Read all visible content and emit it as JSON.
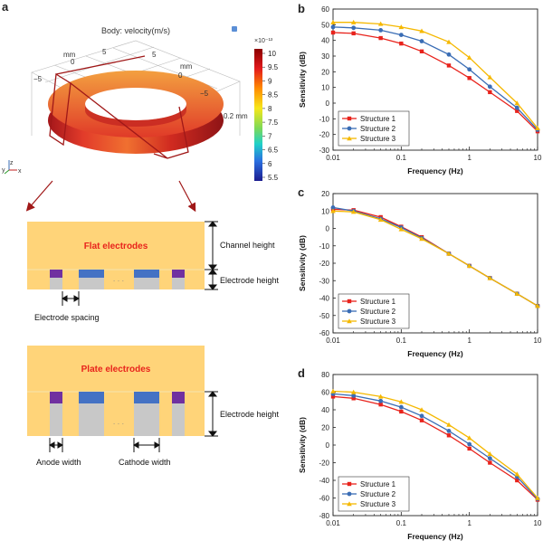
{
  "panels": {
    "a": "a",
    "b": "b",
    "c": "c",
    "d": "d"
  },
  "panel_a": {
    "title": "Body: velocity(m/s)",
    "colorbar": {
      "exponent": "×10⁻¹³",
      "ticks": [
        "10",
        "9.5",
        "9",
        "8.5",
        "8",
        "7.5",
        "7",
        "6.5",
        "6",
        "5.5"
      ]
    },
    "axis_labels": {
      "mm_left": "mm",
      "mm_right": "mm",
      "mm_bottom": "0.2 mm",
      "n5_left": "−5",
      "zero_left": "0",
      "five_top_left": "5",
      "five_top_right": "5",
      "zero_right": "0",
      "n5_right": "−5"
    },
    "triad": {
      "z": "z",
      "y": "y",
      "x": "x"
    },
    "flat": {
      "title": "Flat electrodes",
      "channel_height": "Channel height",
      "electrode_height": "Electrode height",
      "spacing": "Electrode spacing",
      "dots": "· · ·"
    },
    "plate": {
      "title": "Plate electrodes",
      "electrode_height": "Electrode height",
      "anode": "Anode width",
      "cathode": "Cathode width",
      "dots": "· · ·"
    },
    "colors": {
      "fluid": "#ffd479",
      "anode": "#7030a0",
      "cathode": "#4472c4",
      "gray": "#c8c8c8",
      "label_red": "#e8231c"
    }
  },
  "chart_data": [
    {
      "type": "line",
      "id": "b",
      "x": [
        0.01,
        0.02,
        0.05,
        0.1,
        0.2,
        0.5,
        1,
        2,
        5,
        10
      ],
      "xscale": "log",
      "xlim": [
        0.01,
        10
      ],
      "xticks": [
        "0.01",
        "0.1",
        "1",
        "10"
      ],
      "ylim": [
        -30,
        60
      ],
      "yticks": [
        -30,
        -20,
        -10,
        0,
        10,
        20,
        30,
        40,
        50,
        60
      ],
      "xlabel": "Frequency (Hz)",
      "ylabel": "Sensitivity (dB)",
      "legend": "bottom-left",
      "series": [
        {
          "name": "Structure 1",
          "color": "#e8231c",
          "marker": "square",
          "values": [
            45,
            44.5,
            41.5,
            38,
            33,
            24,
            16,
            7,
            -5,
            -18
          ]
        },
        {
          "name": "Structure 2",
          "color": "#3a6db5",
          "marker": "circle",
          "values": [
            48.5,
            48,
            46.5,
            43.5,
            39.5,
            31,
            21.5,
            10.5,
            -3,
            -17
          ]
        },
        {
          "name": "Structure 3",
          "color": "#f5b800",
          "marker": "triangle",
          "values": [
            51.5,
            51.5,
            50.5,
            48.5,
            46,
            39,
            29,
            16.5,
            0,
            -16
          ]
        }
      ]
    },
    {
      "type": "line",
      "id": "c",
      "x": [
        0.01,
        0.02,
        0.05,
        0.1,
        0.2,
        0.5,
        1,
        2,
        5,
        10
      ],
      "xscale": "log",
      "xlim": [
        0.01,
        10
      ],
      "xticks": [
        "0.01",
        "0.1",
        "1",
        "10"
      ],
      "ylim": [
        -60,
        20
      ],
      "yticks": [
        -60,
        -50,
        -40,
        -30,
        -20,
        -10,
        0,
        10,
        20
      ],
      "xlabel": "Frequency (Hz)",
      "ylabel": "Sensitivity (dB)",
      "legend": "bottom-left",
      "series": [
        {
          "name": "Structure 1",
          "color": "#e8231c",
          "marker": "square",
          "values": [
            11,
            10.5,
            6.5,
            1,
            -5,
            -14.5,
            -21.5,
            -28.5,
            -37.5,
            -44.5
          ]
        },
        {
          "name": "Structure 2",
          "color": "#3a6db5",
          "marker": "circle",
          "values": [
            12,
            10,
            5.5,
            0.5,
            -5.5,
            -14.5,
            -21.5,
            -28.5,
            -37.5,
            -44.5
          ]
        },
        {
          "name": "Structure 3",
          "color": "#f5b800",
          "marker": "triangle",
          "values": [
            10,
            9.5,
            5,
            -0.5,
            -6,
            -14.5,
            -21.5,
            -28.5,
            -37.5,
            -44.5
          ]
        }
      ]
    },
    {
      "type": "line",
      "id": "d",
      "x": [
        0.01,
        0.02,
        0.05,
        0.1,
        0.2,
        0.5,
        1,
        2,
        5,
        10
      ],
      "xscale": "log",
      "xlim": [
        0.01,
        10
      ],
      "xticks": [
        "0.01",
        "0.1",
        "1",
        "10"
      ],
      "ylim": [
        -80,
        80
      ],
      "yticks": [
        -80,
        -60,
        -40,
        -20,
        0,
        20,
        40,
        60,
        80
      ],
      "xlabel": "Frequency (Hz)",
      "ylabel": "Sensitivity (dB)",
      "legend": "bottom-left",
      "series": [
        {
          "name": "Structure 1",
          "color": "#e8231c",
          "marker": "square",
          "values": [
            55,
            53,
            46,
            38,
            28,
            11,
            -4,
            -20,
            -40,
            -62
          ]
        },
        {
          "name": "Structure 2",
          "color": "#3a6db5",
          "marker": "circle",
          "values": [
            58,
            56,
            50,
            43,
            33,
            16,
            1,
            -15,
            -36,
            -61
          ]
        },
        {
          "name": "Structure 3",
          "color": "#f5b800",
          "marker": "triangle",
          "values": [
            61,
            60,
            55,
            49,
            40,
            23,
            8,
            -10,
            -33,
            -60
          ]
        }
      ]
    }
  ]
}
